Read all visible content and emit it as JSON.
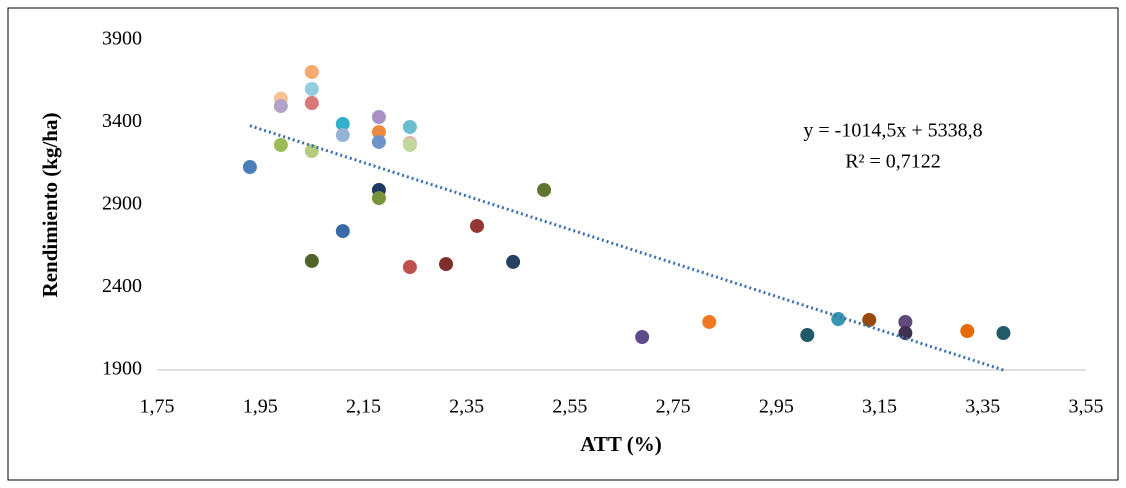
{
  "chart_data": {
    "type": "scatter",
    "x_label": "ATT (%)",
    "y_label": "Rendimiento (kg/ha)",
    "x": [
      1.93,
      1.99,
      1.99,
      1.99,
      2.05,
      2.05,
      2.05,
      2.05,
      2.05,
      2.11,
      2.11,
      2.11,
      2.18,
      2.18,
      2.18,
      2.18,
      2.18,
      2.24,
      2.24,
      2.24,
      2.24,
      2.31,
      2.37,
      2.44,
      2.5,
      2.69,
      2.82,
      3.01,
      3.07,
      3.13,
      3.2,
      3.2,
      3.32,
      3.39
    ],
    "values": [
      3130,
      3545,
      3500,
      3264,
      3706,
      3603,
      3518,
      3227,
      2561,
      3391,
      3324,
      2742,
      3433,
      3342,
      3282,
      2991,
      2942,
      3373,
      3276,
      3264,
      2524,
      2542,
      2773,
      2555,
      2991,
      2100,
      2191,
      2112,
      2209,
      2203,
      2191,
      2124,
      2136,
      2124
    ],
    "colors": [
      "#4a7ebb",
      "#fac090",
      "#b3a2c7",
      "#9bbb59",
      "#f9a870",
      "#93cddd",
      "#d9777a",
      "#b5cc7f",
      "#4f6228",
      "#31b0c8",
      "#95b3d7",
      "#3a6aa8",
      "#a88fc4",
      "#ed8a3c",
      "#6e95c9",
      "#1f3864",
      "#77933c",
      "#6cbdd1",
      "#e6b0ae",
      "#c4d79b",
      "#c0504d",
      "#7f2d2d",
      "#943634",
      "#254061",
      "#5f7530",
      "#5f4b8b",
      "#f07820",
      "#215968",
      "#3896b1",
      "#984807",
      "#604a7b",
      "#403151",
      "#e36c09",
      "#215a6a"
    ],
    "xlim": [
      1.75,
      3.55
    ],
    "xticks": [
      {
        "value": 1.75,
        "label": "1,75"
      },
      {
        "value": 1.95,
        "label": "1,95"
      },
      {
        "value": 2.15,
        "label": "2,15"
      },
      {
        "value": 2.35,
        "label": "2,35"
      },
      {
        "value": 2.55,
        "label": "2,55"
      },
      {
        "value": 2.75,
        "label": "2,75"
      },
      {
        "value": 2.95,
        "label": "2,95"
      },
      {
        "value": 3.15,
        "label": "3,15"
      },
      {
        "value": 3.35,
        "label": "3,35"
      },
      {
        "value": 3.55,
        "label": "3,55"
      }
    ],
    "ylim": [
      1900,
      3900
    ],
    "yticks": [
      1900,
      2400,
      2900,
      3400,
      3900
    ],
    "trendline": {
      "slope": -1014.5,
      "intercept": 5338.8,
      "color": "#3c6fad",
      "equation": "y = -1014,5x + 5338,8",
      "r2": "R² = 0,7122"
    }
  }
}
